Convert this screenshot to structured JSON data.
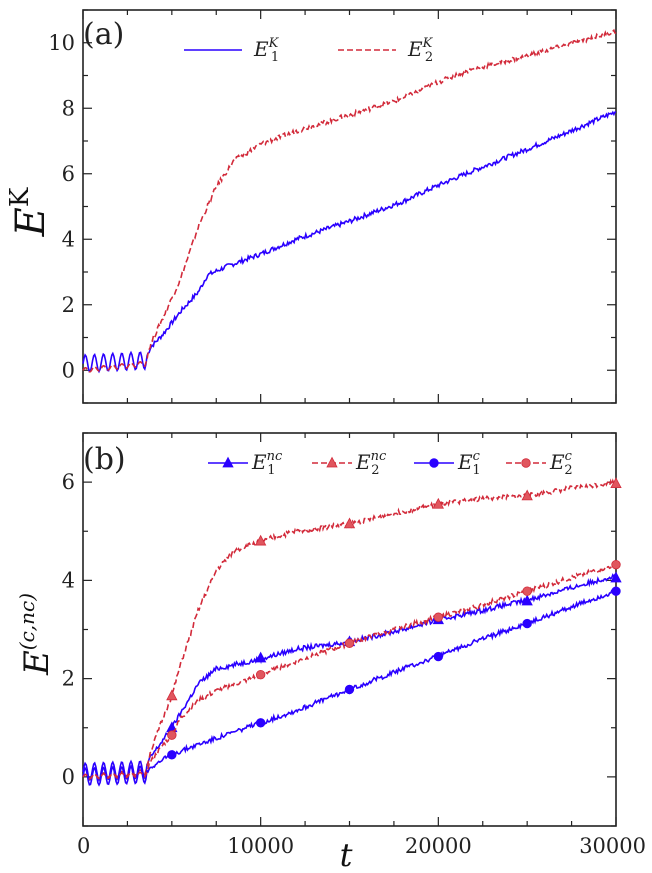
{
  "colors": {
    "series1": "#2a00ff",
    "series2": "#d22a3a",
    "marker2_fill": "#e0565e",
    "axis": "#222222"
  },
  "chart_data": [
    {
      "type": "line",
      "panel_label": "(a)",
      "xlabel": "",
      "ylabel": "E^K",
      "ylabel_base": "E",
      "ylabel_sup": "K",
      "xlim": [
        0,
        30000
      ],
      "ylim": [
        -1,
        11
      ],
      "xticks": [
        0,
        10000,
        20000,
        30000
      ],
      "xticklabels": [
        "",
        "",
        "",
        ""
      ],
      "yticks": [
        0,
        2,
        4,
        6,
        8,
        10
      ],
      "yticklabels": [
        "0",
        "2",
        "4",
        "6",
        "8",
        "10"
      ],
      "legend_position": "top",
      "series": [
        {
          "name": "E_1^K",
          "name_base": "E",
          "name_sub": "1",
          "name_sup": "K",
          "style": "solid",
          "color": "#2a00ff",
          "x": [
            0,
            3500,
            3800,
            4500,
            5500,
            6500,
            7000,
            8000,
            10000,
            12000,
            15000,
            18000,
            20000,
            22000,
            25000,
            27000,
            30000
          ],
          "y": [
            0.2,
            0.3,
            0.7,
            1.1,
            1.8,
            2.4,
            2.9,
            3.15,
            3.55,
            4.0,
            4.55,
            5.15,
            5.65,
            6.1,
            6.75,
            7.2,
            7.9
          ]
        },
        {
          "name": "E_2^K",
          "name_base": "E",
          "name_sub": "2",
          "name_sup": "K",
          "style": "dashed",
          "color": "#d22a3a",
          "x": [
            0,
            3500,
            3800,
            4500,
            5500,
            6500,
            7500,
            8500,
            10000,
            12000,
            15000,
            18000,
            20000,
            22000,
            25000,
            27000,
            30000
          ],
          "y": [
            0.0,
            0.2,
            0.8,
            1.6,
            2.8,
            4.4,
            5.6,
            6.4,
            6.9,
            7.3,
            7.8,
            8.3,
            8.8,
            9.2,
            9.6,
            9.9,
            10.35
          ]
        }
      ]
    },
    {
      "type": "line",
      "panel_label": "(b)",
      "xlabel": "t",
      "ylabel": "E^(c,nc)",
      "ylabel_base": "E",
      "ylabel_sup": "(c,nc)",
      "xlim": [
        0,
        30000
      ],
      "ylim": [
        -1,
        7
      ],
      "xticks": [
        0,
        10000,
        20000,
        30000
      ],
      "xticklabels": [
        "0",
        "10000",
        "20000",
        "30000"
      ],
      "yticks": [
        0,
        2,
        4,
        6
      ],
      "yticklabels": [
        "0",
        "2",
        "4",
        "6"
      ],
      "legend_position": "top",
      "series": [
        {
          "name": "E_1^nc",
          "name_base": "E",
          "name_sub": "1",
          "name_sup": "nc",
          "style": "solid",
          "marker": "triangle",
          "color": "#2a00ff",
          "x": [
            0,
            3500,
            3800,
            4500,
            5000,
            5500,
            6500,
            7500,
            10000,
            12000,
            15000,
            18000,
            20000,
            22000,
            25000,
            27000,
            30000
          ],
          "y": [
            0.1,
            0.15,
            0.4,
            0.75,
            1.0,
            1.3,
            1.9,
            2.2,
            2.4,
            2.6,
            2.75,
            3.0,
            3.2,
            3.35,
            3.6,
            3.8,
            4.1
          ],
          "marker_x": [
            5000,
            10000,
            15000,
            20000,
            25000,
            30000
          ],
          "marker_y": [
            1.0,
            2.42,
            2.75,
            3.2,
            3.58,
            4.05
          ]
        },
        {
          "name": "E_2^nc",
          "name_base": "E",
          "name_sub": "2",
          "name_sup": "nc",
          "style": "dashed",
          "marker": "triangle",
          "color": "#d22a3a",
          "x": [
            0,
            3500,
            3800,
            4500,
            5000,
            5500,
            6500,
            7500,
            8500,
            10000,
            12000,
            15000,
            18000,
            20000,
            22000,
            25000,
            27000,
            30000
          ],
          "y": [
            0.0,
            0.1,
            0.5,
            1.2,
            1.65,
            2.3,
            3.4,
            4.2,
            4.6,
            4.8,
            5.0,
            5.15,
            5.4,
            5.55,
            5.65,
            5.72,
            5.85,
            6.0
          ],
          "marker_x": [
            5000,
            10000,
            15000,
            20000,
            25000,
            30000
          ],
          "marker_y": [
            1.65,
            4.8,
            5.15,
            5.55,
            5.72,
            5.97
          ]
        },
        {
          "name": "E_1^c",
          "name_base": "E",
          "name_sub": "1",
          "name_sup": "c",
          "style": "solid",
          "marker": "circle",
          "color": "#2a00ff",
          "x": [
            0,
            3500,
            3800,
            4500,
            5000,
            6000,
            8000,
            10000,
            12000,
            15000,
            18000,
            20000,
            22000,
            25000,
            27000,
            30000
          ],
          "y": [
            0.0,
            0.05,
            0.2,
            0.35,
            0.45,
            0.6,
            0.85,
            1.1,
            1.35,
            1.78,
            2.2,
            2.45,
            2.75,
            3.12,
            3.4,
            3.78
          ],
          "marker_x": [
            5000,
            10000,
            15000,
            20000,
            25000,
            30000
          ],
          "marker_y": [
            0.45,
            1.1,
            1.78,
            2.45,
            3.12,
            3.78
          ]
        },
        {
          "name": "E_2^c",
          "name_base": "E",
          "name_sub": "2",
          "name_sup": "c",
          "style": "dashed",
          "marker": "circle",
          "color": "#d22a3a",
          "x": [
            0,
            3500,
            3800,
            4500,
            5000,
            5500,
            6500,
            7500,
            10000,
            12000,
            15000,
            18000,
            20000,
            22000,
            25000,
            27000,
            30000
          ],
          "y": [
            0.0,
            0.05,
            0.3,
            0.65,
            0.85,
            1.2,
            1.55,
            1.75,
            2.08,
            2.35,
            2.72,
            3.05,
            3.25,
            3.45,
            3.78,
            4.0,
            4.32
          ],
          "marker_x": [
            5000,
            10000,
            15000,
            20000,
            25000,
            30000
          ],
          "marker_y": [
            0.85,
            2.08,
            2.72,
            3.25,
            3.78,
            4.32
          ]
        }
      ]
    }
  ]
}
